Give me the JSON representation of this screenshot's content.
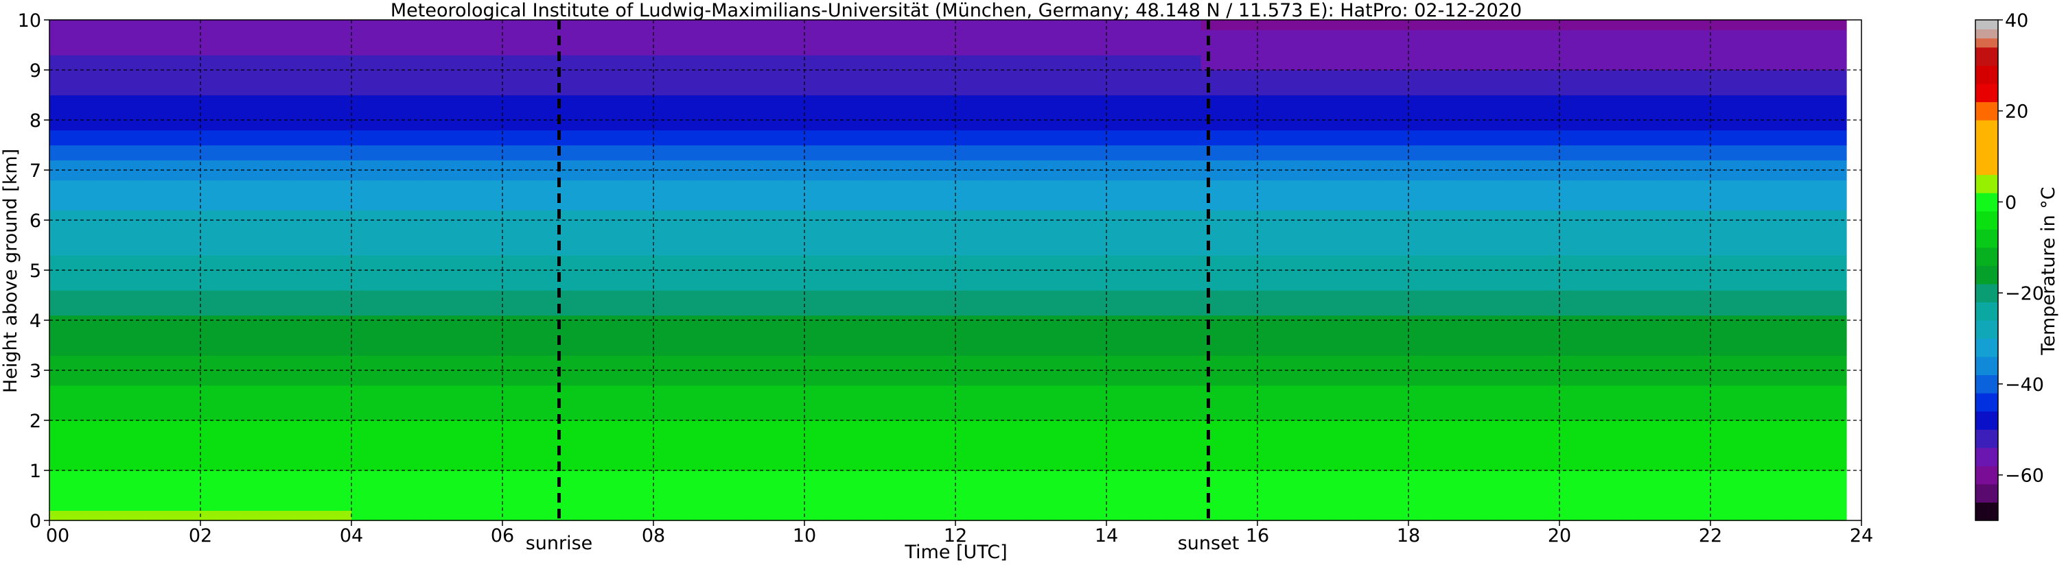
{
  "chart_data": {
    "type": "heatmap",
    "title": "Meteorological Institute of Ludwig-Maximilians-Universität (München, Germany; 48.148 N / 11.573 E):    HatPro: 02-12-2020",
    "xlabel": "Time [UTC]",
    "ylabel": "Height above ground [km]",
    "xlim": [
      0,
      24
    ],
    "ylim": [
      0,
      10
    ],
    "x_ticks": [
      0,
      2,
      4,
      6,
      8,
      10,
      12,
      14,
      16,
      18,
      20,
      22,
      24
    ],
    "x_tick_labels": [
      "00",
      "02",
      "04",
      "06",
      "08",
      "10",
      "12",
      "14",
      "16",
      "18",
      "20",
      "22",
      "24"
    ],
    "y_ticks": [
      0,
      1,
      2,
      3,
      4,
      5,
      6,
      7,
      8,
      9,
      10
    ],
    "y_tick_labels": [
      "0",
      "1",
      "2",
      "3",
      "4",
      "5",
      "6",
      "7",
      "8",
      "9",
      "10"
    ],
    "grid": true,
    "data_end_hour": 23.8,
    "markers": [
      {
        "label": "sunrise",
        "x": 6.75
      },
      {
        "label": "sunset",
        "x": 15.35
      }
    ],
    "colorbar": {
      "label": "Temperature in °C",
      "range": [
        -70,
        40
      ],
      "tick_values": [
        40,
        20,
        0,
        -20,
        -40,
        -60
      ],
      "tick_labels": [
        "40",
        "20",
        "0",
        "−20",
        "−40",
        "−60"
      ],
      "levels": [
        {
          "from": -70,
          "to": -66,
          "color": "#1a001a"
        },
        {
          "from": -66,
          "to": -62,
          "color": "#5a0a6e"
        },
        {
          "from": -62,
          "to": -58,
          "color": "#7a0d96"
        },
        {
          "from": -58,
          "to": -54,
          "color": "#6b16b0"
        },
        {
          "from": -54,
          "to": -50,
          "color": "#3c1fba"
        },
        {
          "from": -50,
          "to": -46,
          "color": "#0a10c8"
        },
        {
          "from": -46,
          "to": -42,
          "color": "#0030e0"
        },
        {
          "from": -42,
          "to": -38,
          "color": "#0a63dc"
        },
        {
          "from": -38,
          "to": -34,
          "color": "#108ad8"
        },
        {
          "from": -34,
          "to": -30,
          "color": "#14a0d2"
        },
        {
          "from": -30,
          "to": -26,
          "color": "#10a8b8"
        },
        {
          "from": -26,
          "to": -22,
          "color": "#0aa8a0"
        },
        {
          "from": -22,
          "to": -18,
          "color": "#0a9c72"
        },
        {
          "from": -18,
          "to": -14,
          "color": "#05a02a"
        },
        {
          "from": -14,
          "to": -10,
          "color": "#06b01e"
        },
        {
          "from": -10,
          "to": -6,
          "color": "#08c818"
        },
        {
          "from": -6,
          "to": -2,
          "color": "#0ae010"
        },
        {
          "from": -2,
          "to": 2,
          "color": "#12f81a"
        },
        {
          "from": 2,
          "to": 6,
          "color": "#96f000"
        },
        {
          "from": 6,
          "to": 10,
          "color": "#ffb400"
        },
        {
          "from": 10,
          "to": 14,
          "color": "#ffb400"
        },
        {
          "from": 14,
          "to": 18,
          "color": "#ffb400"
        },
        {
          "from": 18,
          "to": 22,
          "color": "#ff6a00"
        },
        {
          "from": 22,
          "to": 26,
          "color": "#e80000"
        },
        {
          "from": 26,
          "to": 30,
          "color": "#d40000"
        },
        {
          "from": 30,
          "to": 34,
          "color": "#c21010"
        },
        {
          "from": 34,
          "to": 36,
          "color": "#d86a4a"
        },
        {
          "from": 36,
          "to": 38,
          "color": "#c8a098"
        },
        {
          "from": 38,
          "to": 40,
          "color": "#c0c0c0"
        }
      ]
    },
    "temperature_profile": {
      "heights_km": [
        0.0,
        0.5,
        1.0,
        1.5,
        2.0,
        2.5,
        3.0,
        3.5,
        4.0,
        4.5,
        5.0,
        5.5,
        6.0,
        6.5,
        7.0,
        7.5,
        8.0,
        8.5,
        9.0,
        9.5,
        10.0
      ],
      "temperature_c": [
        1,
        -1,
        -2,
        -4,
        -6,
        -9,
        -12,
        -15,
        -17,
        -21,
        -25,
        -27,
        -29,
        -32,
        -36,
        -42,
        -48,
        -50,
        -52,
        -55,
        -57
      ],
      "early_morning_surface_warming": [
        {
          "hour_from": 0,
          "hour_to": 4,
          "height_to_km": 0.4,
          "delta_c": 3
        }
      ],
      "evening_upper_level_cooling": [
        {
          "hour_from": 15.3,
          "hour_to": 23.8,
          "height_from_km": 8.5,
          "delta_c": -2
        }
      ]
    }
  }
}
